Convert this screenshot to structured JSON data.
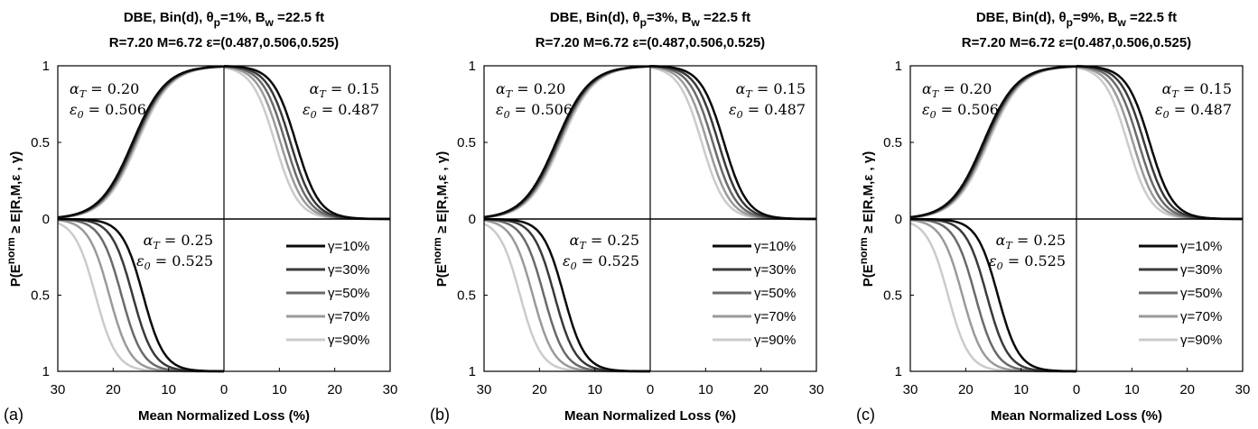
{
  "chart_data": [
    {
      "type": "line",
      "panel_label": "(a)",
      "title_line1": "DBE, Bin(d), θp=1%, Bw =22.5 ft",
      "title_line2": "R=7.20 M=6.72 ε=(0.487,0.506,0.525)",
      "xlabel": "Mean Normalized Loss (%)",
      "ylabel": "P(Enorm ≥ E|R,M,ε , γ)",
      "x_tick_labels": [
        "30",
        "20",
        "10",
        "0",
        "10",
        "20",
        "30"
      ],
      "y_tick_labels": [
        "1",
        "0.5",
        "0",
        "0.5",
        "1"
      ],
      "annotations": {
        "top_left": [
          "αT = 0.20",
          "ε0 = 0.506"
        ],
        "top_right": [
          "αT = 0.15",
          "ε0 = 0.487"
        ],
        "bottom_left": [
          "αT = 0.25",
          "ε0 = 0.525"
        ]
      },
      "quadrants": {
        "top_left": {
          "center": [
            16.5,
            16.3,
            16.1,
            15.9,
            15.6
          ],
          "width": 3.0
        },
        "top_right": {
          "center": [
            13.0,
            12.0,
            11.1,
            10.2,
            9.2
          ],
          "width": 2.1
        },
        "bottom_left": {
          "center": [
            14.6,
            16.5,
            18.5,
            20.7,
            23.2
          ],
          "width": 1.9
        }
      },
      "series": [
        {
          "name": "γ=10%",
          "color": "#0a0a0a"
        },
        {
          "name": "γ=30%",
          "color": "#3a3a3a"
        },
        {
          "name": "γ=50%",
          "color": "#6a6a6a"
        },
        {
          "name": "γ=70%",
          "color": "#9a9a9a"
        },
        {
          "name": "γ=90%",
          "color": "#cbcbcb"
        }
      ],
      "xlim": [
        -30,
        30
      ],
      "ylim": [
        -1,
        1
      ]
    },
    {
      "type": "line",
      "panel_label": "(b)",
      "title_line1": "DBE, Bin(d), θp=3%, Bw =22.5 ft",
      "title_line2": "R=7.20 M=6.72 ε=(0.487,0.506,0.525)",
      "xlabel": "Mean Normalized Loss (%)",
      "ylabel": "P(Enorm ≥ E|R,M,ε , γ)",
      "x_tick_labels": [
        "30",
        "20",
        "10",
        "0",
        "10",
        "20",
        "30"
      ],
      "y_tick_labels": [
        "1",
        "0.5",
        "0",
        "0.5",
        "1"
      ],
      "annotations": {
        "top_left": [
          "αT = 0.20",
          "ε0 = 0.506"
        ],
        "top_right": [
          "αT = 0.15",
          "ε0 = 0.487"
        ],
        "bottom_left": [
          "αT = 0.25",
          "ε0 = 0.525"
        ]
      },
      "quadrants": {
        "top_left": {
          "center": [
            17.0,
            16.8,
            16.6,
            16.4,
            16.1
          ],
          "width": 3.0
        },
        "top_right": {
          "center": [
            13.3,
            12.3,
            11.3,
            10.3,
            9.3
          ],
          "width": 2.1
        },
        "bottom_left": {
          "center": [
            15.6,
            17.3,
            19.2,
            21.2,
            23.5
          ],
          "width": 1.9
        }
      },
      "series": [
        {
          "name": "γ=10%",
          "color": "#0a0a0a"
        },
        {
          "name": "γ=30%",
          "color": "#3a3a3a"
        },
        {
          "name": "γ=50%",
          "color": "#6a6a6a"
        },
        {
          "name": "γ=70%",
          "color": "#9a9a9a"
        },
        {
          "name": "γ=90%",
          "color": "#cbcbcb"
        }
      ],
      "xlim": [
        -30,
        30
      ],
      "ylim": [
        -1,
        1
      ]
    },
    {
      "type": "line",
      "panel_label": "(c)",
      "title_line1": "DBE, Bin(d), θp=9%, Bw =22.5 ft",
      "title_line2": "R=7.20 M=6.72 ε=(0.487,0.506,0.525)",
      "xlabel": "Mean Normalized Loss (%)",
      "ylabel": "P(Enorm ≥ E|R,M,ε , γ)",
      "x_tick_labels": [
        "30",
        "20",
        "10",
        "0",
        "10",
        "20",
        "30"
      ],
      "y_tick_labels": [
        "1",
        "0.5",
        "0",
        "0.5",
        "1"
      ],
      "annotations": {
        "top_left": [
          "αT = 0.20",
          "ε0 = 0.506"
        ],
        "top_right": [
          "αT = 0.15",
          "ε0 = 0.487"
        ],
        "bottom_left": [
          "αT = 0.25",
          "ε0 = 0.525"
        ]
      },
      "quadrants": {
        "top_left": {
          "center": [
            16.8,
            16.6,
            16.4,
            16.2,
            15.9
          ],
          "width": 3.0
        },
        "top_right": {
          "center": [
            13.2,
            12.2,
            11.2,
            10.2,
            9.2
          ],
          "width": 2.1
        },
        "bottom_left": {
          "center": [
            14.2,
            16.2,
            18.3,
            20.6,
            23.2
          ],
          "width": 1.9
        }
      },
      "series": [
        {
          "name": "γ=10%",
          "color": "#0a0a0a"
        },
        {
          "name": "γ=30%",
          "color": "#3a3a3a"
        },
        {
          "name": "γ=50%",
          "color": "#6a6a6a"
        },
        {
          "name": "γ=70%",
          "color": "#9a9a9a"
        },
        {
          "name": "γ=90%",
          "color": "#cbcbcb"
        }
      ],
      "xlim": [
        -30,
        30
      ],
      "ylim": [
        -1,
        1
      ]
    }
  ]
}
